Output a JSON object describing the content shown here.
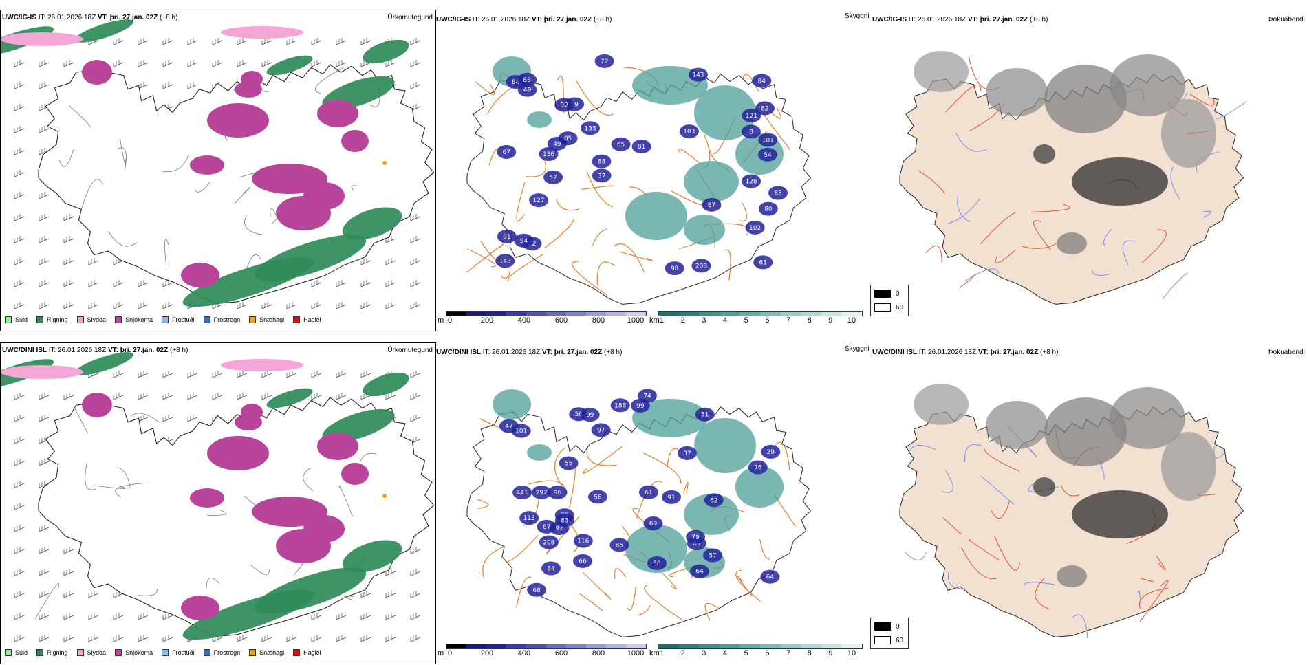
{
  "rows": [
    {
      "model": "UWC/IG-IS",
      "it_label": "IT:",
      "issue_time": "26.01.2026 18Z",
      "vt_label": "VT:",
      "valid_time": "þri. 27.jan. 02Z",
      "lead": "(+8 h)",
      "peaks": [
        "208",
        "88",
        "82",
        "67",
        "87",
        "65",
        "54",
        "59",
        "80",
        "8",
        "49",
        "84",
        "136",
        "128",
        "143",
        "83",
        "143",
        "57",
        "85",
        "82",
        "121",
        "85",
        "101",
        "81",
        "127",
        "94",
        "133",
        "91",
        "98",
        "103",
        "92",
        "84",
        "102",
        "49",
        "37",
        "72",
        "61"
      ]
    },
    {
      "model": "UWC/DINI ISL",
      "it_label": "IT:",
      "issue_time": "26.01.2026 18Z",
      "vt_label": "VT:",
      "valid_time": "þri. 27.jan. 02Z",
      "lead": "(+8 h)",
      "peaks": [
        "188",
        "69",
        "29",
        "50",
        "57",
        "76",
        "58",
        "74",
        "92",
        "91",
        "208",
        "292",
        "62",
        "47",
        "101",
        "97",
        "85",
        "99",
        "64",
        "69",
        "75",
        "84",
        "96",
        "68",
        "441",
        "55",
        "58",
        "51",
        "67",
        "83",
        "99",
        "116",
        "113",
        "79",
        "64",
        "66",
        "37",
        "61"
      ]
    }
  ],
  "panel_titles": {
    "precip": "Úrkomutegund",
    "vis": "Skyggni",
    "fog": "Þokuábendi"
  },
  "precip_legend": [
    {
      "label": "Súld",
      "color": "#90ee90"
    },
    {
      "label": "Rigning",
      "color": "#2e8b57"
    },
    {
      "label": "Slydda",
      "color": "#f4a6d7"
    },
    {
      "label": "Snjókoma",
      "color": "#b8459a"
    },
    {
      "label": "Frostúði",
      "color": "#87b8ee"
    },
    {
      "label": "Frostregn",
      "color": "#2e6fc0"
    },
    {
      "label": "Snæhagl",
      "color": "#f0a020"
    },
    {
      "label": "Haglél",
      "color": "#e01010"
    }
  ],
  "height_bar": {
    "unit": "m",
    "ticks": [
      "0",
      "200",
      "400",
      "600",
      "800",
      "1000"
    ],
    "colors": [
      "#000000",
      "#1a1a7a",
      "#22229a",
      "#3a3aaa",
      "#5050b4",
      "#6a6ac0",
      "#8282cc",
      "#9c9cd8",
      "#b4b4e2",
      "#ccccec"
    ]
  },
  "vis_bar": {
    "unit": "km",
    "ticks": [
      "1",
      "2",
      "3",
      "4",
      "5",
      "6",
      "7",
      "8",
      "9",
      "10"
    ],
    "colors": [
      "#1f6e6a",
      "#2e7f7a",
      "#3d8f89",
      "#4f9f98",
      "#64aea6",
      "#7bbdb5",
      "#95ccc4",
      "#afdad3",
      "#c9e7e2",
      "#e4f3f0"
    ]
  },
  "fog_legend": [
    {
      "label": "0",
      "color": "#000000"
    },
    {
      "label": "60",
      "color": "#ffffff"
    }
  ]
}
